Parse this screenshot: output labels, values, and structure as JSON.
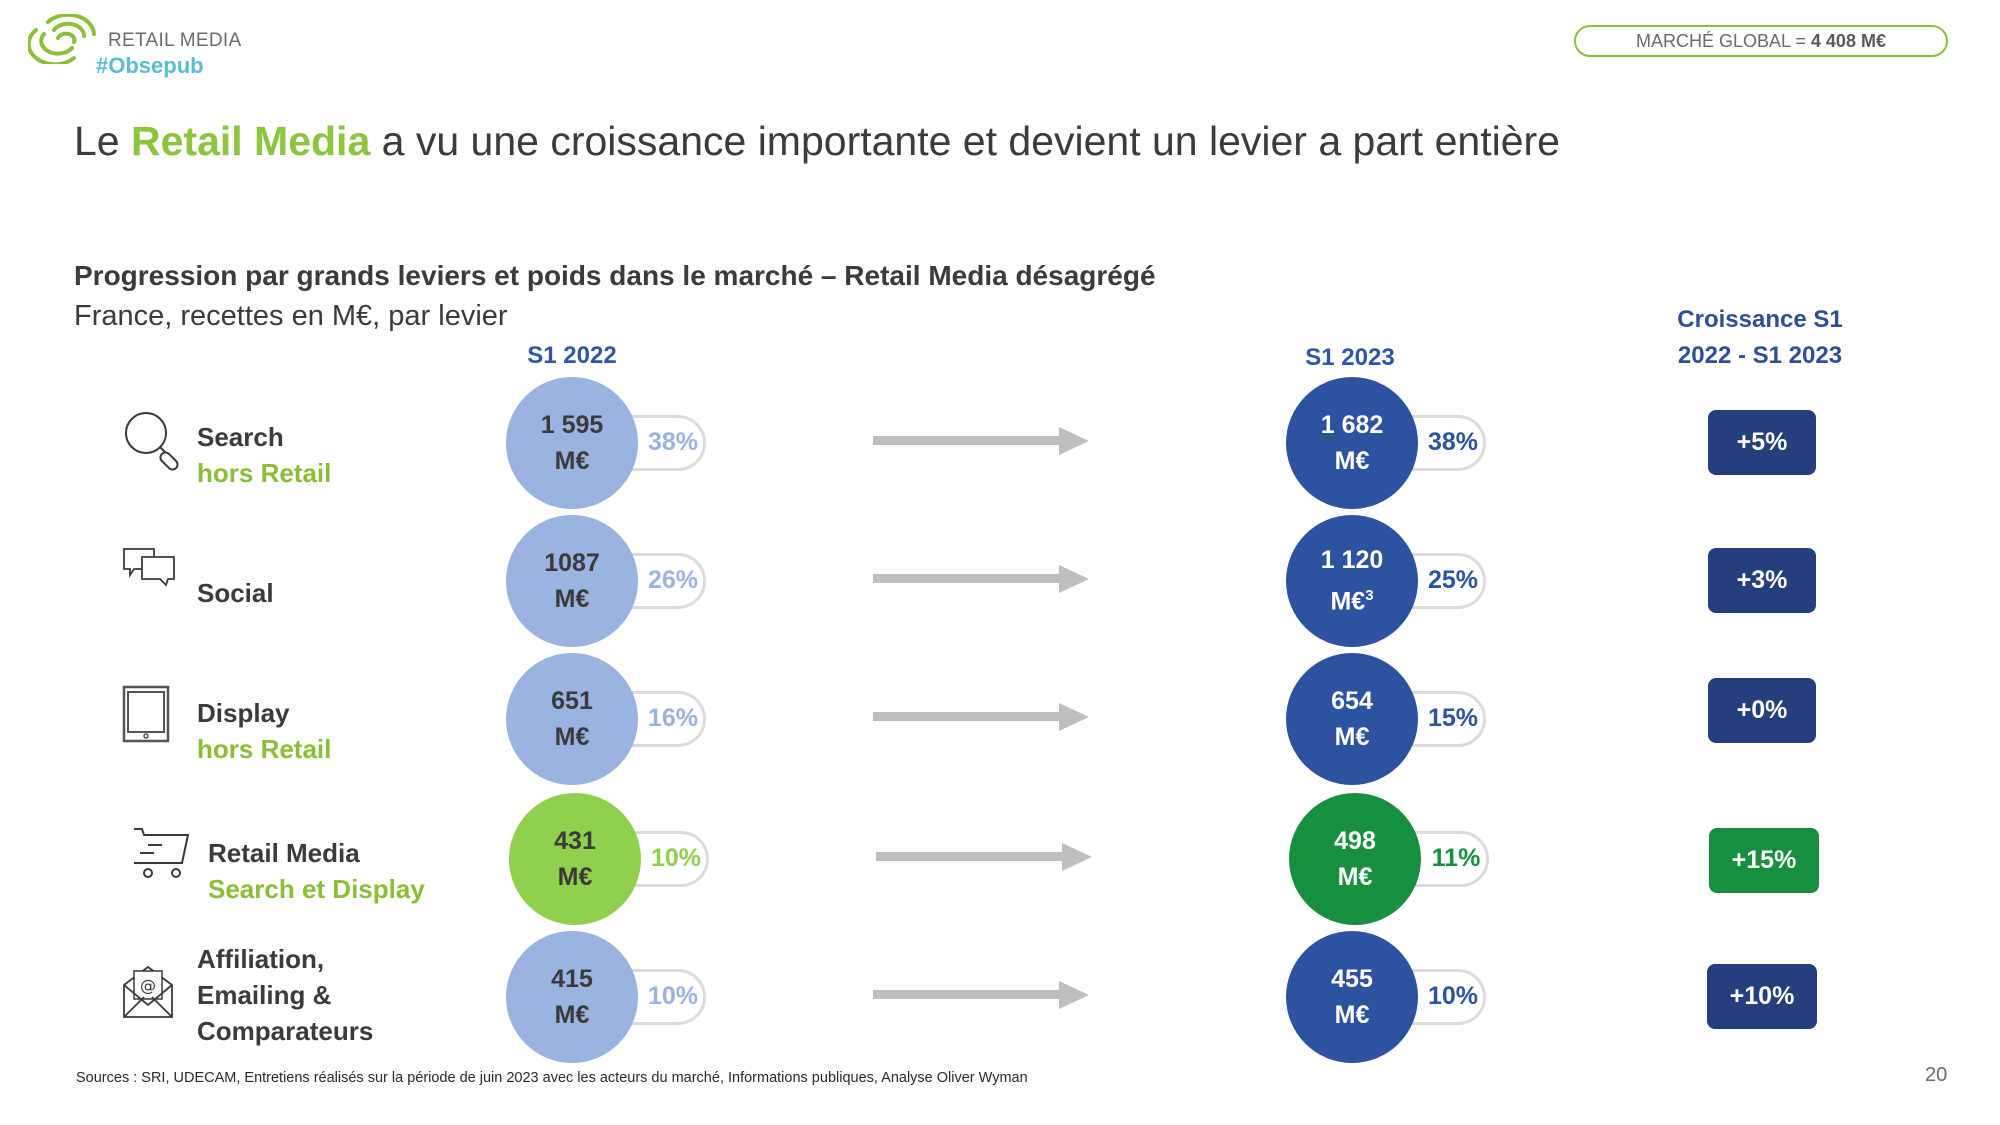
{
  "header": {
    "brand_line1": "RETAIL MEDIA",
    "brand_line2": "#Obsepub",
    "market_label": "MARCHÉ GLOBAL =",
    "market_value": "4 408 M€",
    "brand_color": "#8dbf3b",
    "tag_color": "#5bbcd6"
  },
  "title": {
    "prefix": "Le",
    "highlight": "Retail Media",
    "rest": "a vu une croissance importante et devient un levier a part entière"
  },
  "subtitle": {
    "main": "Progression par grands leviers et poids dans le marché – Retail Media désagrégé",
    "secondary": "France, recettes en M€, par levier"
  },
  "columns": {
    "period1": "S1 2022",
    "period2": "S1 2023",
    "growth_line1": "Croissance S1",
    "growth_line2": "2022 - S1 2023"
  },
  "colors": {
    "blue_light": "#9bb3e0",
    "blue_dark": "#2c52a0",
    "green_light": "#8fd14f",
    "green_dark": "#178f3f",
    "badge_blue": "#233f7e",
    "badge_green": "#178f3f"
  },
  "chart_data": {
    "type": "table",
    "title": "Progression par grands leviers et poids dans le marché – Retail Media désagrégé",
    "subtitle": "France, recettes en M€, par levier",
    "unit": "M€",
    "periods": [
      "S1 2022",
      "S1 2023"
    ],
    "growth_header": "Croissance S1 2022 - S1 2023",
    "total_market_2023": "4 408 M€",
    "rows": [
      {
        "lever": "Search",
        "lever_sub": "hors Retail",
        "icon": "search-icon",
        "v2022": "1 595",
        "v2022_unit": "M€",
        "share2022": "38%",
        "v2023": "1 682",
        "v2023_unit": "M€",
        "v2023_note": "",
        "share2023": "38%",
        "growth": "+5%",
        "highlight": false
      },
      {
        "lever": "Social",
        "lever_sub": "",
        "icon": "chat-bubbles-icon",
        "v2022": "1087",
        "v2022_unit": "M€",
        "share2022": "26%",
        "v2023": "1 120",
        "v2023_unit": "M€",
        "v2023_note": "3",
        "share2023": "25%",
        "growth": "+3%",
        "highlight": false
      },
      {
        "lever": "Display",
        "lever_sub": "hors Retail",
        "icon": "tablet-icon",
        "v2022": "651",
        "v2022_unit": "M€",
        "share2022": "16%",
        "v2023": "654",
        "v2023_unit": "M€",
        "v2023_note": "",
        "share2023": "15%",
        "growth": "+0%",
        "highlight": false
      },
      {
        "lever": "Retail Media",
        "lever_sub": "Search et Display",
        "icon": "shopping-cart-icon",
        "v2022": "431",
        "v2022_unit": "M€",
        "share2022": "10%",
        "v2023": "498",
        "v2023_unit": "M€",
        "v2023_note": "",
        "share2023": "11%",
        "growth": "+15%",
        "highlight": true
      },
      {
        "lever": "Affiliation, Emailing & Comparateurs",
        "lever_sub": "",
        "icon": "email-envelope-icon",
        "lever_lines": [
          "Affiliation,",
          "Emailing &",
          "Comparateurs"
        ],
        "v2022": "415",
        "v2022_unit": "M€",
        "share2022": "10%",
        "v2023": "455",
        "v2023_unit": "M€",
        "v2023_note": "",
        "share2023": "10%",
        "growth": "+10%",
        "highlight": false
      }
    ]
  },
  "footer": {
    "sources": "Sources : SRI, UDECAM, Entretiens réalisés sur la période de juin 2023 avec les acteurs du marché, Informations publiques, Analyse Oliver Wyman",
    "page_number": "20"
  }
}
